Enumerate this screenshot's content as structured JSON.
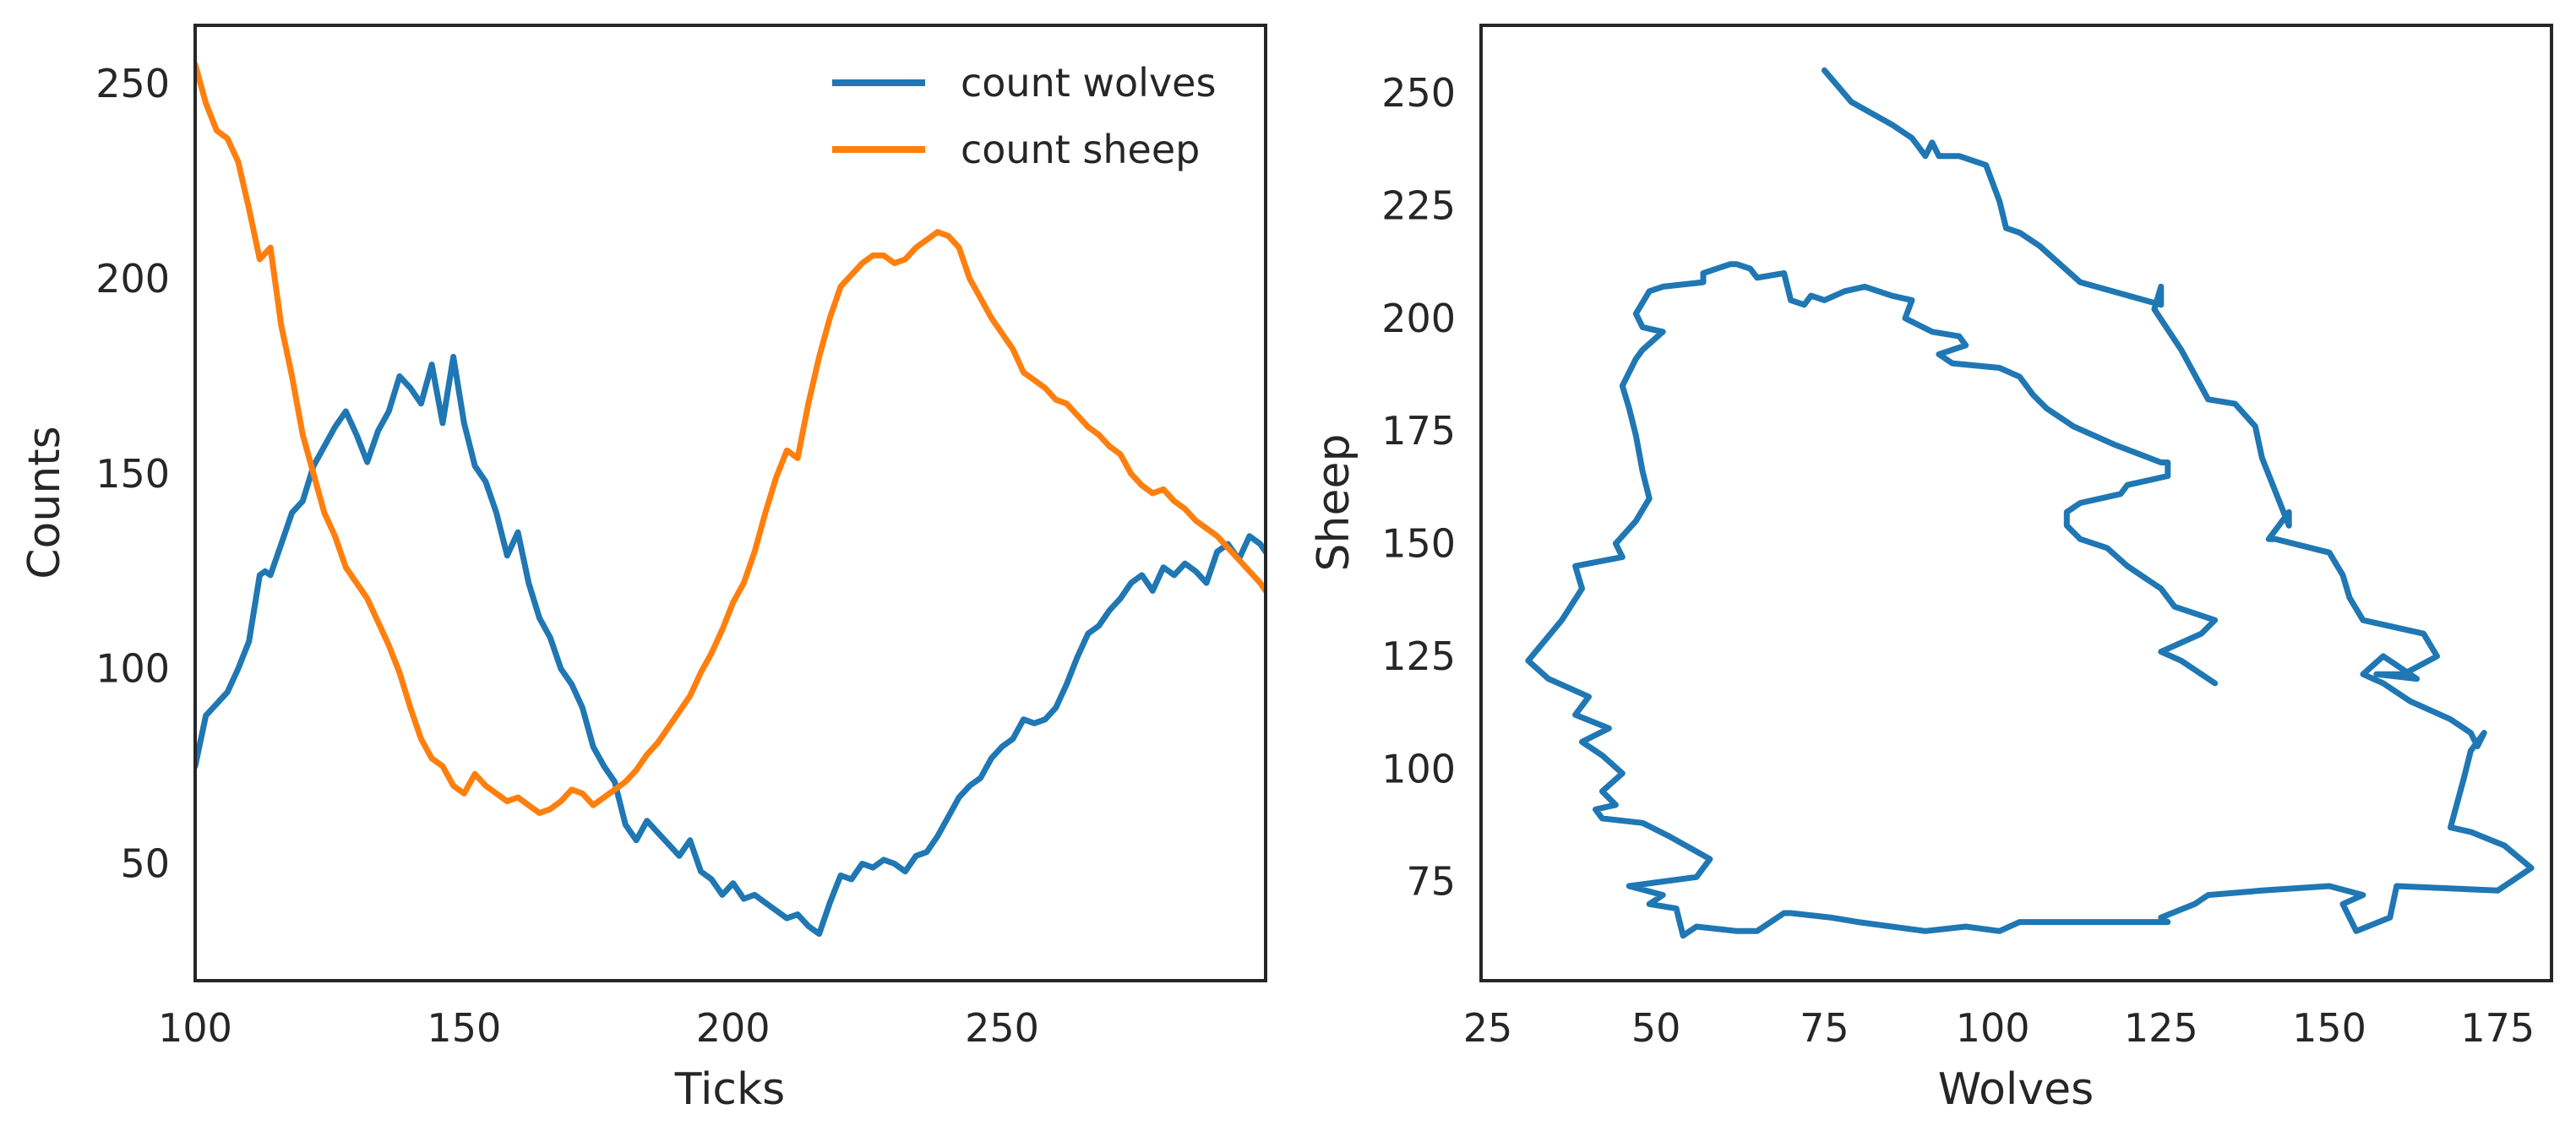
{
  "chart_data": [
    {
      "type": "line",
      "xlabel": "Ticks",
      "ylabel": "Counts",
      "xlim": [
        100,
        299
      ],
      "ylim": [
        20,
        265
      ],
      "xticks": [
        100,
        150,
        200,
        250
      ],
      "yticks": [
        50,
        100,
        150,
        200,
        250
      ],
      "grid": false,
      "legend": "top-right",
      "series": [
        {
          "name": "count wolves",
          "color": "#1f77b4",
          "x": [
            100,
            102,
            104,
            106,
            108,
            110,
            112,
            113,
            114,
            116,
            118,
            120,
            122,
            124,
            126,
            128,
            130,
            132,
            134,
            136,
            138,
            140,
            142,
            144,
            146,
            148,
            150,
            152,
            154,
            156,
            158,
            160,
            162,
            164,
            166,
            168,
            170,
            172,
            174,
            176,
            178,
            180,
            182,
            184,
            186,
            188,
            190,
            192,
            194,
            196,
            198,
            200,
            202,
            204,
            206,
            208,
            210,
            212,
            214,
            216,
            218,
            220,
            222,
            224,
            226,
            228,
            230,
            232,
            234,
            236,
            238,
            240,
            242,
            244,
            246,
            248,
            250,
            252,
            254,
            256,
            258,
            260,
            262,
            264,
            266,
            268,
            270,
            272,
            274,
            276,
            278,
            280,
            282,
            284,
            286,
            288,
            290,
            292,
            294,
            296,
            298,
            299
          ],
          "y": [
            75,
            88,
            91,
            94,
            100,
            107,
            124,
            125,
            124,
            132,
            140,
            143,
            152,
            157,
            162,
            166,
            160,
            153,
            161,
            166,
            175,
            172,
            168,
            178,
            163,
            180,
            163,
            152,
            148,
            140,
            129,
            135,
            122,
            113,
            108,
            100,
            96,
            90,
            80,
            75,
            71,
            60,
            56,
            61,
            58,
            55,
            52,
            56,
            48,
            46,
            42,
            45,
            41,
            42,
            40,
            38,
            36,
            37,
            34,
            32,
            40,
            47,
            46,
            50,
            49,
            51,
            50,
            48,
            52,
            53,
            57,
            62,
            67,
            70,
            72,
            77,
            80,
            82,
            87,
            86,
            87,
            90,
            96,
            103,
            109,
            111,
            115,
            118,
            122,
            124,
            120,
            126,
            124,
            127,
            125,
            122,
            130,
            132,
            128,
            134,
            132,
            130
          ]
        },
        {
          "name": "count sheep",
          "color": "#ff7f0e",
          "x": [
            100,
            102,
            104,
            106,
            108,
            110,
            112,
            114,
            116,
            118,
            120,
            122,
            124,
            126,
            128,
            130,
            132,
            134,
            136,
            138,
            140,
            142,
            144,
            146,
            148,
            150,
            152,
            154,
            156,
            158,
            160,
            162,
            164,
            166,
            168,
            170,
            172,
            174,
            176,
            178,
            180,
            182,
            184,
            186,
            188,
            190,
            192,
            194,
            196,
            198,
            200,
            202,
            204,
            206,
            208,
            210,
            212,
            214,
            216,
            218,
            220,
            222,
            224,
            226,
            228,
            230,
            232,
            234,
            236,
            238,
            240,
            242,
            244,
            246,
            248,
            250,
            252,
            254,
            256,
            258,
            260,
            262,
            264,
            266,
            268,
            270,
            272,
            274,
            276,
            278,
            280,
            282,
            284,
            286,
            288,
            290,
            292,
            294,
            296,
            298,
            299
          ],
          "y": [
            255,
            245,
            238,
            236,
            230,
            218,
            205,
            208,
            188,
            175,
            160,
            150,
            140,
            134,
            126,
            122,
            118,
            112,
            106,
            99,
            90,
            82,
            77,
            75,
            70,
            68,
            73,
            70,
            68,
            66,
            67,
            65,
            63,
            64,
            66,
            69,
            68,
            65,
            67,
            69,
            71,
            74,
            78,
            81,
            85,
            89,
            93,
            99,
            104,
            110,
            117,
            122,
            130,
            140,
            149,
            156,
            154,
            168,
            180,
            190,
            198,
            201,
            204,
            206,
            206,
            204,
            205,
            208,
            210,
            212,
            211,
            208,
            200,
            195,
            190,
            186,
            182,
            176,
            174,
            172,
            169,
            168,
            165,
            162,
            160,
            157,
            155,
            150,
            147,
            145,
            146,
            143,
            141,
            138,
            136,
            134,
            131,
            128,
            125,
            122,
            120
          ]
        }
      ]
    },
    {
      "type": "line",
      "xlabel": "Wolves",
      "ylabel": "Sheep",
      "xlim": [
        24,
        183
      ],
      "ylim": [
        53,
        265
      ],
      "xticks": [
        25,
        50,
        75,
        100,
        125,
        150,
        175
      ],
      "yticks": [
        75,
        100,
        125,
        150,
        175,
        200,
        225,
        250
      ],
      "grid": false,
      "series": [
        {
          "color": "#1f77b4",
          "x": [
            75,
            79,
            85,
            88,
            89,
            90,
            91,
            92,
            93,
            95,
            99,
            101,
            102,
            104,
            107,
            113,
            125,
            125,
            124,
            128,
            132,
            136,
            139,
            140,
            144,
            144,
            141,
            142,
            150,
            152,
            153,
            155,
            164,
            166,
            161,
            157,
            163,
            158,
            155,
            158,
            162,
            168,
            171,
            172,
            173,
            171,
            170,
            168,
            171,
            176,
            180,
            175,
            160,
            159,
            154,
            152,
            155,
            150,
            140,
            132,
            130,
            125,
            126,
            115,
            104,
            101,
            96,
            90,
            80,
            76,
            70,
            69,
            65,
            62,
            56,
            54,
            53,
            49,
            51,
            46,
            56,
            58,
            52,
            48,
            42,
            41,
            44,
            42,
            45,
            42,
            39,
            43,
            38,
            40,
            34,
            31,
            36,
            39,
            38,
            45,
            44,
            47,
            49,
            48,
            47,
            46,
            45,
            47,
            48,
            51,
            48,
            47,
            49,
            51,
            57,
            57,
            59,
            61,
            62,
            64,
            65,
            69,
            70,
            72,
            73,
            75,
            78,
            81,
            85,
            88,
            87,
            91,
            95,
            96,
            92,
            94,
            101,
            104,
            106,
            108,
            112,
            118,
            125,
            126,
            126,
            120,
            119,
            113,
            111,
            111,
            113,
            117,
            120,
            125,
            126,
            127,
            133,
            131,
            125,
            128,
            133
          ],
          "y": [
            255,
            248,
            243,
            240,
            238,
            236,
            239,
            236,
            236,
            236,
            234,
            226,
            220,
            219,
            216,
            208,
            203,
            207,
            202,
            193,
            182,
            181,
            176,
            169,
            154,
            157,
            151,
            151,
            148,
            143,
            138,
            133,
            130,
            125,
            121,
            121,
            120,
            125,
            121,
            119,
            115,
            111,
            108,
            105,
            108,
            104,
            98,
            87,
            86,
            83,
            78,
            73,
            74,
            67,
            64,
            70,
            72,
            74,
            73,
            72,
            70,
            67,
            66,
            66,
            66,
            64,
            65,
            64,
            66,
            67,
            68,
            68,
            64,
            64,
            65,
            63,
            69,
            70,
            72,
            74,
            76,
            80,
            85,
            88,
            89,
            91,
            92,
            95,
            99,
            103,
            106,
            109,
            112,
            116,
            120,
            124,
            133,
            140,
            145,
            147,
            150,
            155,
            160,
            166,
            174,
            180,
            185,
            191,
            193,
            197,
            198,
            201,
            206,
            207,
            208,
            210,
            211,
            212,
            212,
            211,
            209,
            210,
            204,
            203,
            205,
            204,
            206,
            207,
            205,
            204,
            200,
            197,
            196,
            194,
            192,
            190,
            189,
            187,
            183,
            180,
            176,
            172,
            168,
            168,
            165,
            163,
            161,
            159,
            157,
            154,
            151,
            149,
            145,
            140,
            138,
            136,
            133,
            130,
            126,
            124,
            119
          ]
        }
      ]
    }
  ]
}
